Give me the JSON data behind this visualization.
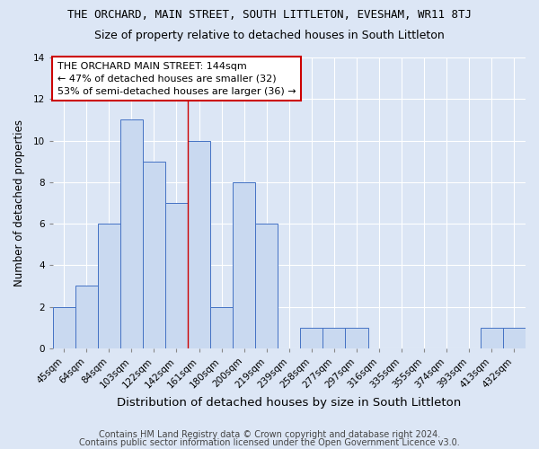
{
  "title": "THE ORCHARD, MAIN STREET, SOUTH LITTLETON, EVESHAM, WR11 8TJ",
  "subtitle": "Size of property relative to detached houses in South Littleton",
  "xlabel": "Distribution of detached houses by size in South Littleton",
  "ylabel": "Number of detached properties",
  "bar_labels": [
    "45sqm",
    "64sqm",
    "84sqm",
    "103sqm",
    "122sqm",
    "142sqm",
    "161sqm",
    "180sqm",
    "200sqm",
    "219sqm",
    "239sqm",
    "258sqm",
    "277sqm",
    "297sqm",
    "316sqm",
    "335sqm",
    "355sqm",
    "374sqm",
    "393sqm",
    "413sqm",
    "432sqm"
  ],
  "bar_values": [
    2,
    3,
    6,
    11,
    9,
    7,
    10,
    2,
    8,
    6,
    0,
    1,
    1,
    1,
    0,
    0,
    0,
    0,
    0,
    1,
    1
  ],
  "bar_color": "#c9d9f0",
  "bar_edge_color": "#4472c4",
  "vline_x": 5.5,
  "vline_color": "#cc0000",
  "ylim": [
    0,
    14
  ],
  "yticks": [
    0,
    2,
    4,
    6,
    8,
    10,
    12,
    14
  ],
  "annotation_text": "THE ORCHARD MAIN STREET: 144sqm\n← 47% of detached houses are smaller (32)\n53% of semi-detached houses are larger (36) →",
  "annotation_box_color": "white",
  "annotation_box_edge": "#cc0000",
  "footer1": "Contains HM Land Registry data © Crown copyright and database right 2024.",
  "footer2": "Contains public sector information licensed under the Open Government Licence v3.0.",
  "fig_background_color": "#dce6f5",
  "plot_background_color": "#dce6f5",
  "grid_color": "white",
  "title_fontsize": 9,
  "subtitle_fontsize": 9,
  "xlabel_fontsize": 9.5,
  "ylabel_fontsize": 8.5,
  "tick_fontsize": 7.5,
  "annotation_fontsize": 8,
  "footer_fontsize": 7
}
